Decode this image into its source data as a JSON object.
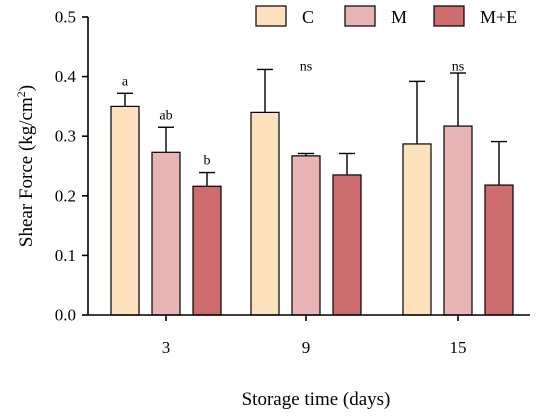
{
  "chart_data": {
    "type": "bar",
    "title": "",
    "xlabel": "Storage time (days)",
    "ylabel_text": "Shear Force (kg/cm",
    "ylabel_sup": "2",
    "ylabel_close": ")",
    "categories": [
      "3",
      "9",
      "15"
    ],
    "ylim": [
      0,
      0.5
    ],
    "yticks": [
      "0.0",
      "0.1",
      "0.2",
      "0.3",
      "0.4",
      "0.5"
    ],
    "ytick_values": [
      0,
      0.1,
      0.2,
      0.3,
      0.4,
      0.5
    ],
    "grid": false,
    "legend_position": "top-right",
    "series": [
      {
        "name": "C",
        "color": "#fde1bd",
        "values": [
          0.35,
          0.34,
          0.287
        ],
        "errors": [
          0.022,
          0.072,
          0.105
        ]
      },
      {
        "name": "M",
        "color": "#e8b4b6",
        "values": [
          0.273,
          0.267,
          0.317
        ],
        "errors": [
          0.042,
          0.004,
          0.089
        ]
      },
      {
        "name": "M+E",
        "color": "#cd6d70",
        "values": [
          0.216,
          0.235,
          0.218
        ],
        "errors": [
          0.023,
          0.036,
          0.073
        ]
      }
    ],
    "annotations": [
      {
        "category": "3",
        "series": "C",
        "text": "a"
      },
      {
        "category": "3",
        "series": "M",
        "text": "ab"
      },
      {
        "category": "3",
        "series": "M+E",
        "text": "b"
      },
      {
        "category": "9",
        "series": "M",
        "text": "ns"
      },
      {
        "category": "15",
        "series": "M",
        "text": "ns"
      }
    ]
  }
}
